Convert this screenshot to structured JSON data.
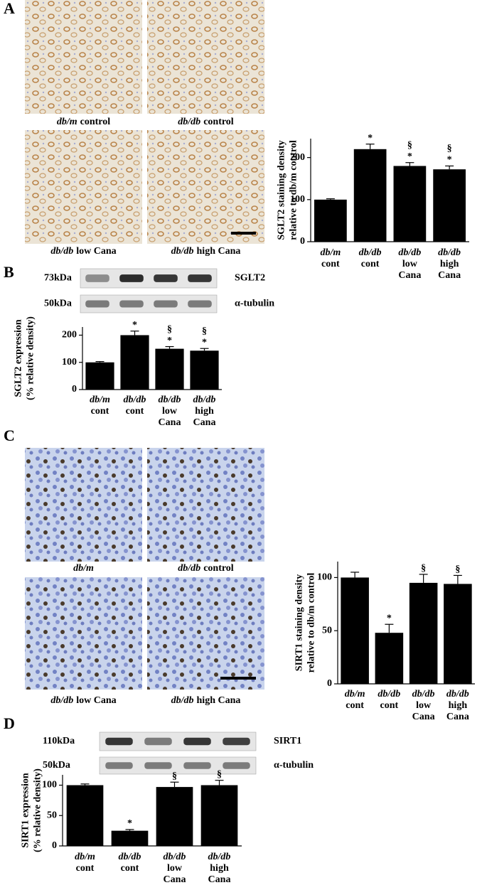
{
  "figure": {
    "A": {
      "letter": "A",
      "images": [
        {
          "italic": "db/m",
          "plain": "control"
        },
        {
          "italic": "db/db",
          "plain": "control"
        },
        {
          "italic": "db/db",
          "plain": "low  Cana"
        },
        {
          "italic": "db/db",
          "plain": "high Cana"
        }
      ]
    },
    "B": {
      "letter": "B",
      "blot": [
        {
          "size": "73kDa",
          "protein": "SGLT2"
        },
        {
          "size": "50kDa",
          "protein": "α-tubulin"
        }
      ]
    },
    "C": {
      "letter": "C",
      "images": [
        {
          "italic": "db/m"
        },
        {
          "italic": "db/db",
          "plain": "control"
        },
        {
          "italic": "db/db",
          "plain": "low  Cana"
        },
        {
          "italic": "db/db",
          "plain": "high Cana"
        }
      ]
    },
    "D": {
      "letter": "D",
      "blot": [
        {
          "size": "110kDa",
          "protein": "SIRT1"
        },
        {
          "size": "50kDa",
          "protein": "α-tubulin"
        }
      ]
    }
  },
  "chart_data": [
    {
      "type": "bar",
      "y_label": [
        "SGLT2  staining  density",
        "relative to db/m control"
      ],
      "categories": [
        [
          "db/m",
          "cont"
        ],
        [
          "db/db",
          "cont"
        ],
        [
          "db/db",
          "low",
          "Cana"
        ],
        [
          "db/db",
          "high",
          "Cana"
        ]
      ],
      "values": [
        100,
        220,
        180,
        172
      ],
      "errors": [
        2,
        12,
        8,
        8
      ],
      "markers": [
        null,
        [
          "*"
        ],
        [
          "§",
          "*"
        ],
        [
          "§",
          "*"
        ]
      ],
      "color": "#000000",
      "ylim": [
        0,
        245
      ],
      "yticks": [
        0,
        100,
        200
      ]
    },
    {
      "type": "bar",
      "y_label": [
        "SGLT2  expression",
        "(% relative density)"
      ],
      "categories": [
        [
          "db/m",
          "cont"
        ],
        [
          "db/db",
          "cont"
        ],
        [
          "db/db",
          "low",
          "Cana"
        ],
        [
          "db/db",
          "high",
          "Cana"
        ]
      ],
      "values": [
        100,
        200,
        150,
        143
      ],
      "errors": [
        3,
        15,
        8,
        8
      ],
      "markers": [
        null,
        [
          "*"
        ],
        [
          "§",
          "*"
        ],
        [
          "§",
          "*"
        ]
      ],
      "color": "#000000",
      "ylim": [
        0,
        230
      ],
      "yticks": [
        0,
        100,
        200
      ]
    },
    {
      "type": "bar",
      "y_label": [
        "SIRT1  staining  density",
        "relative to db/m control"
      ],
      "categories": [
        [
          "db/m",
          "cont"
        ],
        [
          "db/db",
          "cont"
        ],
        [
          "db/db",
          "low",
          "Cana"
        ],
        [
          "db/db",
          "high",
          "Cana"
        ]
      ],
      "values": [
        100,
        48,
        95,
        94
      ],
      "errors": [
        5,
        8,
        8,
        8
      ],
      "markers": [
        null,
        [
          "*"
        ],
        [
          "§"
        ],
        [
          "§"
        ]
      ],
      "color": "#000000",
      "ylim": [
        0,
        115
      ],
      "yticks": [
        0,
        50,
        100
      ]
    },
    {
      "type": "bar",
      "y_label": [
        "SIRT1  expression",
        "(% relative density)"
      ],
      "categories": [
        [
          "db/m",
          "cont"
        ],
        [
          "db/db",
          "cont"
        ],
        [
          "db/db",
          "low",
          "Cana"
        ],
        [
          "db/db",
          "high",
          "Cana"
        ]
      ],
      "values": [
        100,
        25,
        97,
        100
      ],
      "errors": [
        2,
        2,
        8,
        8
      ],
      "markers": [
        null,
        [
          "*"
        ],
        [
          "§"
        ],
        [
          "§"
        ]
      ],
      "color": "#000000",
      "ylim": [
        0,
        117
      ],
      "yticks": [
        0,
        50,
        100
      ]
    }
  ]
}
